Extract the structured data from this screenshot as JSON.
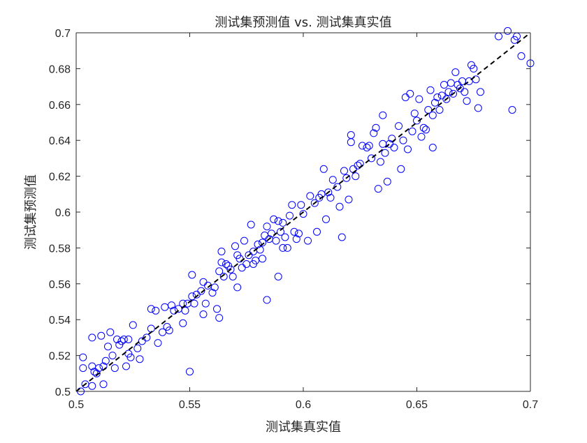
{
  "chart_data": {
    "type": "scatter",
    "title": "测试集预测值 vs. 测试集真实值",
    "xlabel": "测试集真实值",
    "ylabel": "测试集预测值",
    "xlim": [
      0.5,
      0.7
    ],
    "ylim": [
      0.5,
      0.7
    ],
    "x_ticks": [
      "0.5",
      "0.55",
      "0.6",
      "0.65",
      "0.7"
    ],
    "y_ticks": [
      "0.5",
      "0.52",
      "0.54",
      "0.56",
      "0.58",
      "0.6",
      "0.62",
      "0.64",
      "0.66",
      "0.68",
      "0.7"
    ],
    "grid": false,
    "marker_color": "#0000ff",
    "reference_line": {
      "style": "dashed",
      "color": "#000000",
      "from": [
        0.5,
        0.5
      ],
      "to": [
        0.7,
        0.7
      ]
    },
    "series": [
      {
        "points": [
          [
            0.502,
            0.5
          ],
          [
            0.503,
            0.513
          ],
          [
            0.503,
            0.519
          ],
          [
            0.504,
            0.504
          ],
          [
            0.507,
            0.503
          ],
          [
            0.507,
            0.514
          ],
          [
            0.507,
            0.53
          ],
          [
            0.508,
            0.511
          ],
          [
            0.509,
            0.51
          ],
          [
            0.51,
            0.513
          ],
          [
            0.511,
            0.531
          ],
          [
            0.512,
            0.504
          ],
          [
            0.512,
            0.514
          ],
          [
            0.513,
            0.517
          ],
          [
            0.514,
            0.525
          ],
          [
            0.515,
            0.533
          ],
          [
            0.516,
            0.52
          ],
          [
            0.517,
            0.513
          ],
          [
            0.518,
            0.529
          ],
          [
            0.519,
            0.526
          ],
          [
            0.52,
            0.528
          ],
          [
            0.521,
            0.529
          ],
          [
            0.522,
            0.514
          ],
          [
            0.523,
            0.521
          ],
          [
            0.523,
            0.529
          ],
          [
            0.524,
            0.519
          ],
          [
            0.525,
            0.537
          ],
          [
            0.527,
            0.524
          ],
          [
            0.528,
            0.518
          ],
          [
            0.529,
            0.528
          ],
          [
            0.531,
            0.53
          ],
          [
            0.533,
            0.535
          ],
          [
            0.533,
            0.546
          ],
          [
            0.535,
            0.545
          ],
          [
            0.536,
            0.527
          ],
          [
            0.538,
            0.533
          ],
          [
            0.539,
            0.547
          ],
          [
            0.54,
            0.536
          ],
          [
            0.541,
            0.534
          ],
          [
            0.542,
            0.548
          ],
          [
            0.543,
            0.545
          ],
          [
            0.545,
            0.546
          ],
          [
            0.547,
            0.549
          ],
          [
            0.547,
            0.538
          ],
          [
            0.548,
            0.545
          ],
          [
            0.549,
            0.549
          ],
          [
            0.55,
            0.511
          ],
          [
            0.551,
            0.553
          ],
          [
            0.551,
            0.565
          ],
          [
            0.552,
            0.549
          ],
          [
            0.553,
            0.554
          ],
          [
            0.555,
            0.556
          ],
          [
            0.556,
            0.561
          ],
          [
            0.556,
            0.543
          ],
          [
            0.557,
            0.549
          ],
          [
            0.558,
            0.559
          ],
          [
            0.56,
            0.555
          ],
          [
            0.561,
            0.558
          ],
          [
            0.562,
            0.546
          ],
          [
            0.563,
            0.567
          ],
          [
            0.563,
            0.541
          ],
          [
            0.564,
            0.578
          ],
          [
            0.564,
            0.572
          ],
          [
            0.565,
            0.564
          ],
          [
            0.566,
            0.571
          ],
          [
            0.567,
            0.57
          ],
          [
            0.568,
            0.568
          ],
          [
            0.569,
            0.564
          ],
          [
            0.57,
            0.581
          ],
          [
            0.571,
            0.576
          ],
          [
            0.571,
            0.558
          ],
          [
            0.572,
            0.574
          ],
          [
            0.573,
            0.569
          ],
          [
            0.574,
            0.584
          ],
          [
            0.575,
            0.571
          ],
          [
            0.576,
            0.576
          ],
          [
            0.577,
            0.593
          ],
          [
            0.578,
            0.578
          ],
          [
            0.578,
            0.571
          ],
          [
            0.579,
            0.573
          ],
          [
            0.58,
            0.582
          ],
          [
            0.581,
            0.579
          ],
          [
            0.582,
            0.583
          ],
          [
            0.582,
            0.574
          ],
          [
            0.583,
            0.587
          ],
          [
            0.584,
            0.592
          ],
          [
            0.584,
            0.551
          ],
          [
            0.585,
            0.585
          ],
          [
            0.586,
            0.588
          ],
          [
            0.587,
            0.596
          ],
          [
            0.588,
            0.584
          ],
          [
            0.589,
            0.595
          ],
          [
            0.589,
            0.564
          ],
          [
            0.59,
            0.589
          ],
          [
            0.591,
            0.594
          ],
          [
            0.591,
            0.58
          ],
          [
            0.592,
            0.586
          ],
          [
            0.593,
            0.58
          ],
          [
            0.594,
            0.598
          ],
          [
            0.595,
            0.604
          ],
          [
            0.596,
            0.589
          ],
          [
            0.597,
            0.585
          ],
          [
            0.598,
            0.588
          ],
          [
            0.599,
            0.604
          ],
          [
            0.6,
            0.599
          ],
          [
            0.602,
            0.584
          ],
          [
            0.603,
            0.609
          ],
          [
            0.605,
            0.605
          ],
          [
            0.606,
            0.589
          ],
          [
            0.607,
            0.608
          ],
          [
            0.608,
            0.61
          ],
          [
            0.609,
            0.624
          ],
          [
            0.61,
            0.596
          ],
          [
            0.611,
            0.611
          ],
          [
            0.612,
            0.608
          ],
          [
            0.613,
            0.618
          ],
          [
            0.615,
            0.614
          ],
          [
            0.616,
            0.603
          ],
          [
            0.617,
            0.586
          ],
          [
            0.618,
            0.623
          ],
          [
            0.619,
            0.619
          ],
          [
            0.62,
            0.607
          ],
          [
            0.621,
            0.639
          ],
          [
            0.621,
            0.643
          ],
          [
            0.622,
            0.624
          ],
          [
            0.623,
            0.62
          ],
          [
            0.624,
            0.626
          ],
          [
            0.625,
            0.627
          ],
          [
            0.626,
            0.637
          ],
          [
            0.628,
            0.636
          ],
          [
            0.629,
            0.637
          ],
          [
            0.63,
            0.63
          ],
          [
            0.631,
            0.644
          ],
          [
            0.632,
            0.647
          ],
          [
            0.633,
            0.613
          ],
          [
            0.634,
            0.628
          ],
          [
            0.635,
            0.638
          ],
          [
            0.635,
            0.654
          ],
          [
            0.636,
            0.633
          ],
          [
            0.637,
            0.617
          ],
          [
            0.638,
            0.638
          ],
          [
            0.639,
            0.641
          ],
          [
            0.64,
            0.636
          ],
          [
            0.642,
            0.648
          ],
          [
            0.643,
            0.624
          ],
          [
            0.644,
            0.64
          ],
          [
            0.645,
            0.664
          ],
          [
            0.646,
            0.635
          ],
          [
            0.647,
            0.666
          ],
          [
            0.648,
            0.645
          ],
          [
            0.649,
            0.655
          ],
          [
            0.65,
            0.651
          ],
          [
            0.651,
            0.663
          ],
          [
            0.652,
            0.642
          ],
          [
            0.653,
            0.647
          ],
          [
            0.654,
            0.646
          ],
          [
            0.655,
            0.657
          ],
          [
            0.656,
            0.668
          ],
          [
            0.657,
            0.654
          ],
          [
            0.657,
            0.636
          ],
          [
            0.658,
            0.661
          ],
          [
            0.659,
            0.664
          ],
          [
            0.66,
            0.657
          ],
          [
            0.661,
            0.665
          ],
          [
            0.662,
            0.671
          ],
          [
            0.663,
            0.663
          ],
          [
            0.664,
            0.667
          ],
          [
            0.665,
            0.672
          ],
          [
            0.666,
            0.666
          ],
          [
            0.667,
            0.678
          ],
          [
            0.668,
            0.671
          ],
          [
            0.669,
            0.669
          ],
          [
            0.67,
            0.673
          ],
          [
            0.671,
            0.667
          ],
          [
            0.672,
            0.662
          ],
          [
            0.673,
            0.673
          ],
          [
            0.674,
            0.682
          ],
          [
            0.675,
            0.68
          ],
          [
            0.676,
            0.674
          ],
          [
            0.677,
            0.658
          ],
          [
            0.678,
            0.667
          ],
          [
            0.686,
            0.698
          ],
          [
            0.69,
            0.701
          ],
          [
            0.692,
            0.657
          ],
          [
            0.693,
            0.696
          ],
          [
            0.694,
            0.698
          ],
          [
            0.696,
            0.687
          ],
          [
            0.7,
            0.683
          ]
        ]
      }
    ]
  }
}
